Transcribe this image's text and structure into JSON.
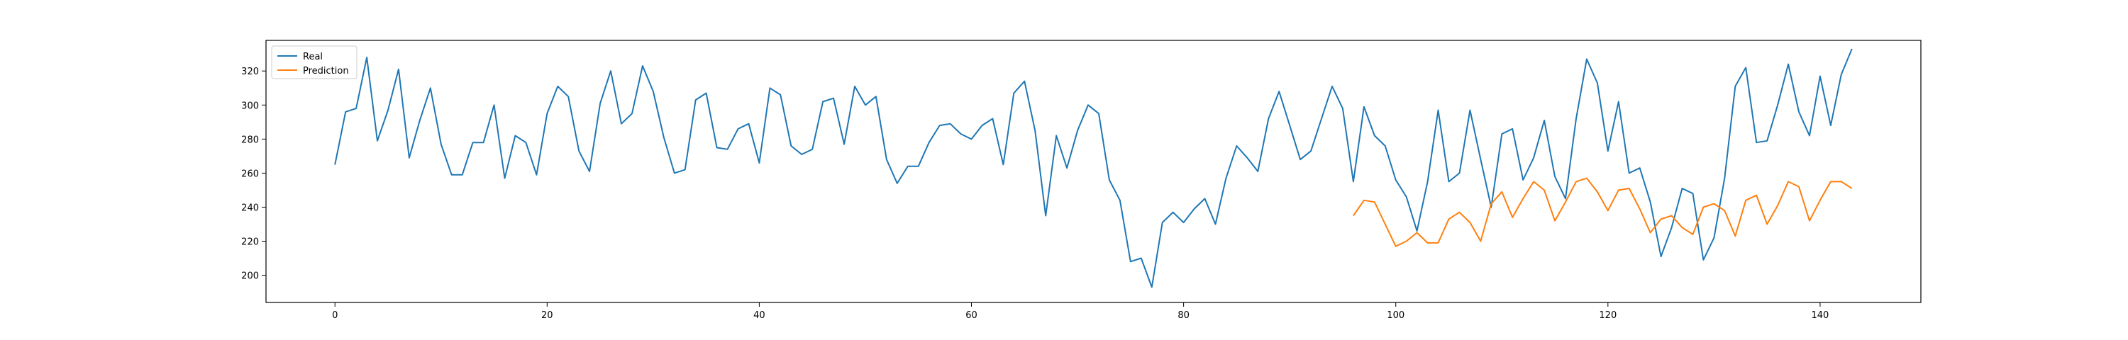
{
  "chart_data": {
    "type": "line",
    "title": "",
    "xlabel": "",
    "ylabel": "",
    "xlim": [
      -6.5,
      149.5
    ],
    "ylim": [
      184,
      338
    ],
    "xticks": [
      0,
      20,
      40,
      60,
      80,
      100,
      120,
      140
    ],
    "yticks": [
      200,
      220,
      240,
      260,
      280,
      300,
      320
    ],
    "grid": false,
    "legend_position": "upper-left",
    "series": [
      {
        "name": "Real",
        "color": "#1f77b4",
        "x_start": 0,
        "values": [
          265,
          296,
          298,
          328,
          279,
          297,
          321,
          269,
          291,
          310,
          277,
          259,
          259,
          278,
          278,
          300,
          257,
          282,
          278,
          259,
          295,
          311,
          305,
          273,
          261,
          301,
          320,
          289,
          295,
          323,
          308,
          281,
          260,
          262,
          303,
          307,
          275,
          274,
          286,
          289,
          266,
          310,
          306,
          276,
          271,
          274,
          302,
          304,
          277,
          311,
          300,
          305,
          268,
          254,
          264,
          264,
          278,
          288,
          289,
          283,
          280,
          288,
          292,
          265,
          307,
          314,
          285,
          235,
          282,
          263,
          285,
          300,
          295,
          256,
          244,
          208,
          210,
          193,
          231,
          237,
          231,
          239,
          245,
          230,
          257,
          276,
          269,
          261,
          292,
          308,
          288,
          268,
          273,
          292,
          311,
          298,
          255,
          299,
          282,
          276,
          256,
          246,
          226,
          255,
          297,
          255,
          260,
          297,
          268,
          240,
          283,
          286,
          256,
          269,
          291,
          258,
          245,
          292,
          327,
          313,
          273,
          302,
          260,
          263,
          243,
          211,
          228,
          251,
          248,
          209,
          222,
          257,
          311,
          322,
          278,
          279,
          300,
          324,
          296,
          282,
          317,
          288,
          318,
          333
        ]
      },
      {
        "name": "Prediction",
        "color": "#ff7f0e",
        "x_start": 96,
        "values": [
          235,
          244,
          243,
          230,
          217,
          220,
          225,
          219,
          219,
          233,
          237,
          231,
          220,
          242,
          249,
          234,
          245,
          255,
          250,
          232,
          243,
          255,
          257,
          249,
          238,
          250,
          251,
          239,
          225,
          233,
          235,
          228,
          224,
          240,
          242,
          238,
          223,
          244,
          247,
          230,
          241,
          255,
          252,
          232,
          244,
          255,
          255,
          251
        ]
      }
    ]
  }
}
